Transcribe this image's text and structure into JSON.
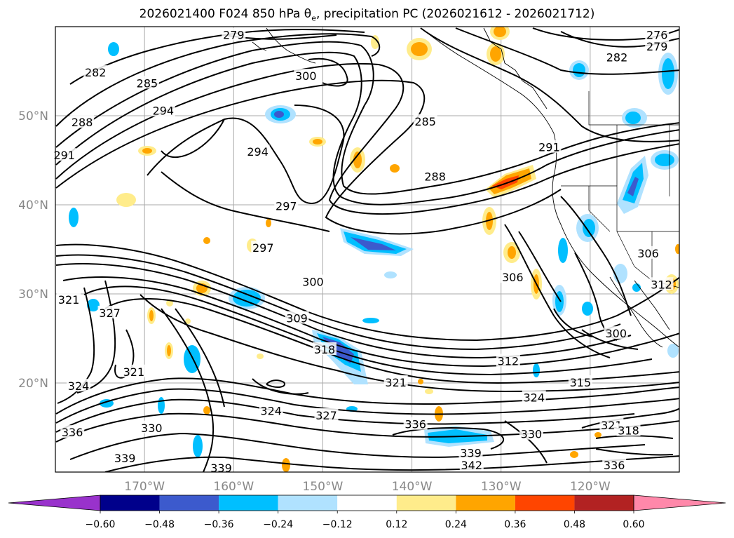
{
  "title": {
    "prefix": "2026021400 F024 850 hPa θ",
    "subscript": "e",
    "suffix": ", precipitation PC (2026021612 - 2026021712)"
  },
  "map": {
    "lon_range": [
      -180,
      -110
    ],
    "lat_range": [
      10,
      60
    ],
    "lat_ticks": [
      {
        "value": 20,
        "label": "20°N"
      },
      {
        "value": 30,
        "label": "30°N"
      },
      {
        "value": 40,
        "label": "40°N"
      },
      {
        "value": 50,
        "label": "50°N"
      }
    ],
    "lon_ticks": [
      {
        "value": -170,
        "label": "170°W"
      },
      {
        "value": -160,
        "label": "160°W"
      },
      {
        "value": -150,
        "label": "150°W"
      },
      {
        "value": -140,
        "label": "140°W"
      },
      {
        "value": -130,
        "label": "130°W"
      },
      {
        "value": -120,
        "label": "120°W"
      }
    ],
    "grid": true
  },
  "contour_labels": [
    {
      "text": "279",
      "lon": -160,
      "lat": 59
    },
    {
      "text": "276",
      "lon": -112.5,
      "lat": 59
    },
    {
      "text": "279",
      "lon": -112.5,
      "lat": 57.7
    },
    {
      "text": "282",
      "lon": -117,
      "lat": 56.5
    },
    {
      "text": "282",
      "lon": -175.5,
      "lat": 54.8
    },
    {
      "text": "285",
      "lon": -169.7,
      "lat": 53.6
    },
    {
      "text": "300",
      "lon": -151.9,
      "lat": 54.4
    },
    {
      "text": "294",
      "lon": -167.9,
      "lat": 50.5
    },
    {
      "text": "288",
      "lon": -177,
      "lat": 49.2
    },
    {
      "text": "285",
      "lon": -138.5,
      "lat": 49.3
    },
    {
      "text": "291",
      "lon": -179,
      "lat": 45.5
    },
    {
      "text": "294",
      "lon": -157.3,
      "lat": 45.9
    },
    {
      "text": "291",
      "lon": -124.6,
      "lat": 46.4
    },
    {
      "text": "288",
      "lon": -137.4,
      "lat": 43.1
    },
    {
      "text": "297",
      "lon": -154.1,
      "lat": 39.8
    },
    {
      "text": "297",
      "lon": -156.7,
      "lat": 35.1
    },
    {
      "text": "300",
      "lon": -151.1,
      "lat": 31.3
    },
    {
      "text": "306",
      "lon": -128.7,
      "lat": 31.8
    },
    {
      "text": "306",
      "lon": -113.5,
      "lat": 34.5
    },
    {
      "text": "312",
      "lon": -112,
      "lat": 31
    },
    {
      "text": "321",
      "lon": -178.5,
      "lat": 29.3
    },
    {
      "text": "327",
      "lon": -173.9,
      "lat": 27.8
    },
    {
      "text": "309",
      "lon": -152.9,
      "lat": 27.2
    },
    {
      "text": "318",
      "lon": -149.8,
      "lat": 23.7
    },
    {
      "text": "300",
      "lon": -117.1,
      "lat": 25.5
    },
    {
      "text": "312",
      "lon": -129.2,
      "lat": 22.4
    },
    {
      "text": "321",
      "lon": -171.2,
      "lat": 21.2
    },
    {
      "text": "324",
      "lon": -177.4,
      "lat": 19.6
    },
    {
      "text": "321",
      "lon": -141.8,
      "lat": 20
    },
    {
      "text": "315",
      "lon": -121.1,
      "lat": 20
    },
    {
      "text": "324",
      "lon": -126.3,
      "lat": 18.3
    },
    {
      "text": "324",
      "lon": -155.8,
      "lat": 16.8
    },
    {
      "text": "327",
      "lon": -149.6,
      "lat": 16.3
    },
    {
      "text": "336",
      "lon": -178.1,
      "lat": 14.4
    },
    {
      "text": "330",
      "lon": -169.2,
      "lat": 14.9
    },
    {
      "text": "336",
      "lon": -139.6,
      "lat": 15.3
    },
    {
      "text": "330",
      "lon": -126.6,
      "lat": 14.2
    },
    {
      "text": "321",
      "lon": -117.6,
      "lat": 15.2
    },
    {
      "text": "318",
      "lon": -115.7,
      "lat": 14.6
    },
    {
      "text": "339",
      "lon": -172.2,
      "lat": 11.5
    },
    {
      "text": "339",
      "lon": -133.4,
      "lat": 12.1
    },
    {
      "text": "342",
      "lon": -133.3,
      "lat": 10.7
    },
    {
      "text": "339",
      "lon": -161.4,
      "lat": 10.4
    },
    {
      "text": "336",
      "lon": -117.3,
      "lat": 10.7
    }
  ],
  "colorbar": {
    "extend": "both",
    "levels": [
      -0.6,
      -0.48,
      -0.36,
      -0.24,
      -0.12,
      0.12,
      0.24,
      0.36,
      0.48,
      0.6
    ],
    "tick_labels": [
      "−0.60",
      "−0.48",
      "−0.36",
      "−0.24",
      "−0.12",
      "0.12",
      "0.24",
      "0.36",
      "0.48",
      "0.60"
    ],
    "colors": [
      "#9932cc",
      "#00008b",
      "#3c5acd",
      "#00bfff",
      "#b0e2ff",
      "#ffffff",
      "#ffec8b",
      "#ffa500",
      "#ff4500",
      "#b22222",
      "#ff88aa"
    ]
  }
}
